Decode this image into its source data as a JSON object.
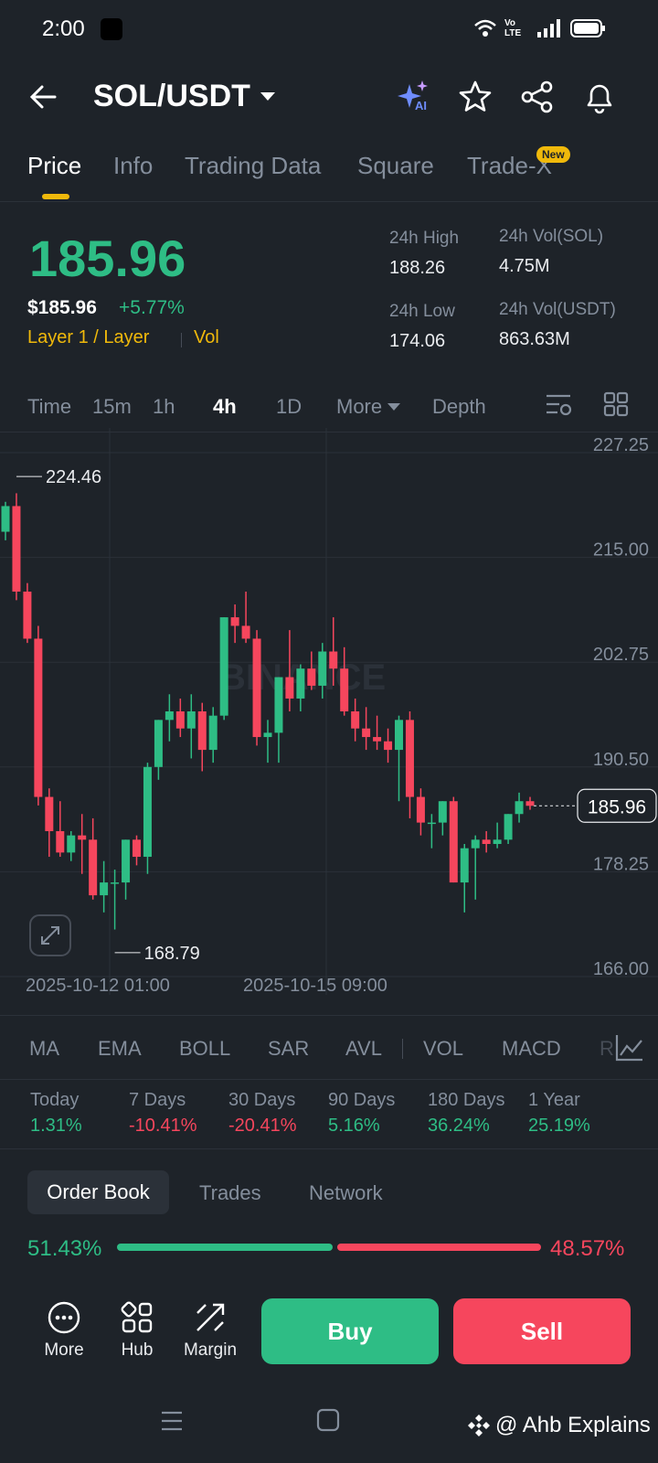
{
  "status": {
    "time": "2:00",
    "network_label": "Vo LTE"
  },
  "header": {
    "title": "SOL/USDT",
    "ai_label": "AI"
  },
  "tabs": [
    {
      "label": "Price"
    },
    {
      "label": "Info"
    },
    {
      "label": "Trading Data"
    },
    {
      "label": "Square"
    },
    {
      "label": "Trade-X"
    }
  ],
  "new_badge": "New",
  "price": {
    "last": "185.96",
    "usd": "$185.96",
    "change": "+5.77%",
    "category": "Layer 1 / Layer",
    "vol_tag": "Vol"
  },
  "stats": {
    "high_label": "24h High",
    "high_value": "188.26",
    "low_label": "24h Low",
    "low_value": "174.06",
    "vol_base_label": "24h Vol(SOL)",
    "vol_base_value": "4.75M",
    "vol_quote_label": "24h Vol(USDT)",
    "vol_quote_value": "863.63M"
  },
  "time_tabs": [
    "Time",
    "15m",
    "1h",
    "4h",
    "1D",
    "More",
    "Depth"
  ],
  "chart_data": {
    "type": "candlestick",
    "ylim": [
      166.0,
      227.25
    ],
    "y_ticks": [
      "227.25",
      "215.00",
      "202.75",
      "190.50",
      "178.25",
      "166.00"
    ],
    "x_ticks": [
      "2025-10-12 01:00",
      "2025-10-15 09:00"
    ],
    "max_label": "224.46",
    "min_label": "168.79",
    "current_label": "185.96",
    "watermark": "BINANCE",
    "candles": [
      [
        218.0,
        221.5,
        217.0,
        221.0
      ],
      [
        221.0,
        222.5,
        210.0,
        211.0
      ],
      [
        211.0,
        212.0,
        205.0,
        205.5
      ],
      [
        205.5,
        207.0,
        186.0,
        187.0
      ],
      [
        187.0,
        188.0,
        180.0,
        183.0
      ],
      [
        183.0,
        186.5,
        180.0,
        180.5
      ],
      [
        180.5,
        183.0,
        179.5,
        182.5
      ],
      [
        182.5,
        185.0,
        178.0,
        182.0
      ],
      [
        182.0,
        184.5,
        175.0,
        175.5
      ],
      [
        175.5,
        179.5,
        173.5,
        177.0
      ],
      [
        177.0,
        178.5,
        171.5,
        177.0
      ],
      [
        177.0,
        182.0,
        175.0,
        182.0
      ],
      [
        182.0,
        182.5,
        179.0,
        180.0
      ],
      [
        180.0,
        191.0,
        178.0,
        190.5
      ],
      [
        190.5,
        196.0,
        189.0,
        196.0
      ],
      [
        196.0,
        199.0,
        193.5,
        197.0
      ],
      [
        197.0,
        198.5,
        194.0,
        195.0
      ],
      [
        195.0,
        199.0,
        191.5,
        197.0
      ],
      [
        197.0,
        198.0,
        190.0,
        192.5
      ],
      [
        192.5,
        197.5,
        191.0,
        196.5
      ],
      [
        196.5,
        208.0,
        196.0,
        208.0
      ],
      [
        208.0,
        209.5,
        205.0,
        207.0
      ],
      [
        207.0,
        211.0,
        205.0,
        205.5
      ],
      [
        205.5,
        206.5,
        193.0,
        194.0
      ],
      [
        194.0,
        196.0,
        191.0,
        194.5
      ],
      [
        194.5,
        201.0,
        191.0,
        201.0
      ],
      [
        201.0,
        206.5,
        197.0,
        198.5
      ],
      [
        198.5,
        202.5,
        197.0,
        202.0
      ],
      [
        202.0,
        204.0,
        199.5,
        200.0
      ],
      [
        200.0,
        205.0,
        198.5,
        204.0
      ],
      [
        204.0,
        208.0,
        200.0,
        202.0
      ],
      [
        202.0,
        204.5,
        196.5,
        197.0
      ],
      [
        197.0,
        198.5,
        193.5,
        195.0
      ],
      [
        195.0,
        197.5,
        192.5,
        194.0
      ],
      [
        194.0,
        196.5,
        192.5,
        193.5
      ],
      [
        193.5,
        195.0,
        191.0,
        192.5
      ],
      [
        192.5,
        196.5,
        186.5,
        196.0
      ],
      [
        196.0,
        197.0,
        184.5,
        187.0
      ],
      [
        187.0,
        188.0,
        182.5,
        184.0
      ],
      [
        184.0,
        185.0,
        181.0,
        184.0
      ],
      [
        184.0,
        186.5,
        182.5,
        186.5
      ],
      [
        186.5,
        187.0,
        177.0,
        177.0
      ],
      [
        177.0,
        181.5,
        173.5,
        181.0
      ],
      [
        181.0,
        182.5,
        175.0,
        182.0
      ],
      [
        182.0,
        183.0,
        180.5,
        181.5
      ],
      [
        181.5,
        184.0,
        181.0,
        182.0
      ],
      [
        182.0,
        185.0,
        181.5,
        185.0
      ],
      [
        185.0,
        187.5,
        184.0,
        186.5
      ],
      [
        186.5,
        187.0,
        185.5,
        185.96
      ]
    ]
  },
  "indicators": [
    "MA",
    "EMA",
    "BOLL",
    "SAR",
    "AVL",
    "VOL",
    "MACD",
    "R"
  ],
  "performance": [
    {
      "label": "Today",
      "value": "1.31%",
      "dir": "up"
    },
    {
      "label": "7 Days",
      "value": "-10.41%",
      "dir": "down"
    },
    {
      "label": "30 Days",
      "value": "-20.41%",
      "dir": "down"
    },
    {
      "label": "90 Days",
      "value": "5.16%",
      "dir": "up"
    },
    {
      "label": "180 Days",
      "value": "36.24%",
      "dir": "up"
    },
    {
      "label": "1 Year",
      "value": "25.19%",
      "dir": "up"
    }
  ],
  "book_tabs": [
    "Order Book",
    "Trades",
    "Network"
  ],
  "ratio": {
    "buy": "51.43%",
    "sell": "48.57%",
    "buy_fraction": 0.5143
  },
  "actions": {
    "more": "More",
    "hub": "Hub",
    "margin": "Margin",
    "buy": "Buy",
    "sell": "Sell"
  },
  "watermark": "@ Ahb Explains",
  "colors": {
    "up": "#2ebd85",
    "down": "#f6465d",
    "accent": "#f0b90b",
    "bg": "#1e2329"
  }
}
